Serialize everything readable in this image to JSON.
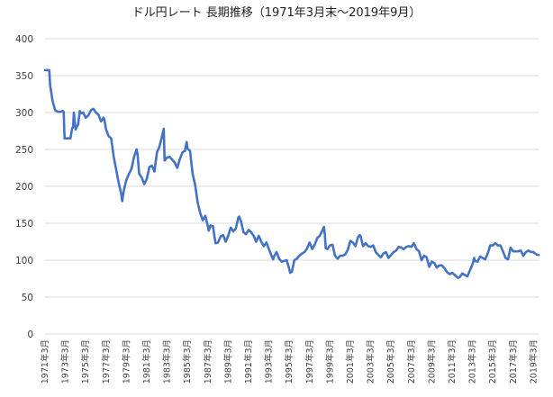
{
  "chart_data": {
    "type": "line",
    "title": "ドル円レート 長期推移（1971年3月末～2019年9月）",
    "xlabel": "",
    "ylabel": "",
    "ylim": [
      0,
      400
    ],
    "yticks": [
      0,
      50,
      100,
      150,
      200,
      250,
      300,
      350,
      400
    ],
    "grid": true,
    "legend": "none",
    "line_color": "#4472c4",
    "xlim": [
      "1971-03",
      "2019-09"
    ],
    "x_tick_labels": [
      "1971年3月",
      "1973年3月",
      "1975年3月",
      "1977年3月",
      "1979年3月",
      "1981年3月",
      "1983年3月",
      "1985年3月",
      "1987年3月",
      "1989年3月",
      "1991年3月",
      "1993年3月",
      "1995年3月",
      "1997年3月",
      "1999年3月",
      "2001年3月",
      "2003年3月",
      "2005年3月",
      "2007年3月",
      "2009年3月",
      "2011年3月",
      "2013年3月",
      "2015年3月",
      "2017年3月",
      "2019年3月"
    ],
    "series": [
      {
        "points": [
          [
            "1971-03",
            357.5
          ],
          [
            "1971-06",
            357.4
          ],
          [
            "1971-08",
            357.2
          ],
          [
            "1971-09",
            337
          ],
          [
            "1971-12",
            315
          ],
          [
            "1972-03",
            303
          ],
          [
            "1972-06",
            301
          ],
          [
            "1972-09",
            301
          ],
          [
            "1972-12",
            302
          ],
          [
            "1973-01",
            301
          ],
          [
            "1973-02",
            265
          ],
          [
            "1973-06",
            265
          ],
          [
            "1973-09",
            265
          ],
          [
            "1973-11",
            279
          ],
          [
            "1973-12",
            280
          ],
          [
            "1974-01",
            300
          ],
          [
            "1974-03",
            277
          ],
          [
            "1974-06",
            284
          ],
          [
            "1974-08",
            302
          ],
          [
            "1974-10",
            299
          ],
          [
            "1974-12",
            300
          ],
          [
            "1975-03",
            293
          ],
          [
            "1975-06",
            296
          ],
          [
            "1975-09",
            303
          ],
          [
            "1975-12",
            305
          ],
          [
            "1976-03",
            300
          ],
          [
            "1976-06",
            297
          ],
          [
            "1976-09",
            288
          ],
          [
            "1976-12",
            293
          ],
          [
            "1977-01",
            290
          ],
          [
            "1977-03",
            277
          ],
          [
            "1977-06",
            268
          ],
          [
            "1977-09",
            265
          ],
          [
            "1977-12",
            240
          ],
          [
            "1978-03",
            222
          ],
          [
            "1978-06",
            204
          ],
          [
            "1978-09",
            189
          ],
          [
            "1978-10",
            180
          ],
          [
            "1978-12",
            195
          ],
          [
            "1979-03",
            209
          ],
          [
            "1979-06",
            217
          ],
          [
            "1979-09",
            224
          ],
          [
            "1979-12",
            240
          ],
          [
            "1980-03",
            250
          ],
          [
            "1980-04",
            245
          ],
          [
            "1980-06",
            217
          ],
          [
            "1980-09",
            212
          ],
          [
            "1980-12",
            203
          ],
          [
            "1981-03",
            210
          ],
          [
            "1981-06",
            226
          ],
          [
            "1981-09",
            228
          ],
          [
            "1981-12",
            220
          ],
          [
            "1982-03",
            246
          ],
          [
            "1982-06",
            254
          ],
          [
            "1982-09",
            268
          ],
          [
            "1982-11",
            278
          ],
          [
            "1982-12",
            235
          ],
          [
            "1983-03",
            239
          ],
          [
            "1983-06",
            240
          ],
          [
            "1983-09",
            236
          ],
          [
            "1983-12",
            232
          ],
          [
            "1984-03",
            225
          ],
          [
            "1984-06",
            237
          ],
          [
            "1984-09",
            246
          ],
          [
            "1984-12",
            248
          ],
          [
            "1985-02",
            260
          ],
          [
            "1985-03",
            251
          ],
          [
            "1985-06",
            248
          ],
          [
            "1985-09",
            217
          ],
          [
            "1985-12",
            202
          ],
          [
            "1986-03",
            178
          ],
          [
            "1986-06",
            164
          ],
          [
            "1986-09",
            154
          ],
          [
            "1986-12",
            160
          ],
          [
            "1987-03",
            146
          ],
          [
            "1987-04",
            140
          ],
          [
            "1987-06",
            147
          ],
          [
            "1987-09",
            146
          ],
          [
            "1987-12",
            123
          ],
          [
            "1988-03",
            124
          ],
          [
            "1988-06",
            132
          ],
          [
            "1988-09",
            134
          ],
          [
            "1988-12",
            125
          ],
          [
            "1989-03",
            133
          ],
          [
            "1989-06",
            144
          ],
          [
            "1989-09",
            139
          ],
          [
            "1989-12",
            143
          ],
          [
            "1990-03",
            158
          ],
          [
            "1990-04",
            159
          ],
          [
            "1990-06",
            153
          ],
          [
            "1990-09",
            138
          ],
          [
            "1990-12",
            135
          ],
          [
            "1991-03",
            141
          ],
          [
            "1991-06",
            138
          ],
          [
            "1991-09",
            133
          ],
          [
            "1991-12",
            125
          ],
          [
            "1992-03",
            133
          ],
          [
            "1992-06",
            125
          ],
          [
            "1992-09",
            119
          ],
          [
            "1992-12",
            124
          ],
          [
            "1993-03",
            115
          ],
          [
            "1993-06",
            106
          ],
          [
            "1993-08",
            101
          ],
          [
            "1993-09",
            105
          ],
          [
            "1993-12",
            111
          ],
          [
            "1994-03",
            102
          ],
          [
            "1994-06",
            98
          ],
          [
            "1994-09",
            99
          ],
          [
            "1994-12",
            100
          ],
          [
            "1995-03",
            88
          ],
          [
            "1995-04",
            83
          ],
          [
            "1995-06",
            84
          ],
          [
            "1995-09",
            100
          ],
          [
            "1995-12",
            102
          ],
          [
            "1996-03",
            106
          ],
          [
            "1996-06",
            109
          ],
          [
            "1996-09",
            111
          ],
          [
            "1996-12",
            116
          ],
          [
            "1997-03",
            124
          ],
          [
            "1997-05",
            118
          ],
          [
            "1997-06",
            115
          ],
          [
            "1997-09",
            121
          ],
          [
            "1997-12",
            130
          ],
          [
            "1998-03",
            133
          ],
          [
            "1998-06",
            140
          ],
          [
            "1998-08",
            145
          ],
          [
            "1998-09",
            134
          ],
          [
            "1998-10",
            116
          ],
          [
            "1998-12",
            115
          ],
          [
            "1999-03",
            120
          ],
          [
            "1999-06",
            121
          ],
          [
            "1999-09",
            106
          ],
          [
            "1999-12",
            102
          ],
          [
            "2000-03",
            106
          ],
          [
            "2000-06",
            106
          ],
          [
            "2000-09",
            108
          ],
          [
            "2000-12",
            114
          ],
          [
            "2001-03",
            126
          ],
          [
            "2001-06",
            124
          ],
          [
            "2001-09",
            119
          ],
          [
            "2001-12",
            131
          ],
          [
            "2002-02",
            134
          ],
          [
            "2002-03",
            133
          ],
          [
            "2002-06",
            119
          ],
          [
            "2002-09",
            123
          ],
          [
            "2002-12",
            119
          ],
          [
            "2003-03",
            118
          ],
          [
            "2003-06",
            120
          ],
          [
            "2003-09",
            111
          ],
          [
            "2003-12",
            107
          ],
          [
            "2004-03",
            104
          ],
          [
            "2004-06",
            109
          ],
          [
            "2004-09",
            111
          ],
          [
            "2004-12",
            103
          ],
          [
            "2005-03",
            107
          ],
          [
            "2005-06",
            111
          ],
          [
            "2005-09",
            113
          ],
          [
            "2005-12",
            118
          ],
          [
            "2006-03",
            117
          ],
          [
            "2006-06",
            115
          ],
          [
            "2006-09",
            118
          ],
          [
            "2006-12",
            119
          ],
          [
            "2007-03",
            118
          ],
          [
            "2007-06",
            123
          ],
          [
            "2007-09",
            115
          ],
          [
            "2007-12",
            112
          ],
          [
            "2008-03",
            100
          ],
          [
            "2008-06",
            106
          ],
          [
            "2008-09",
            104
          ],
          [
            "2008-12",
            91
          ],
          [
            "2009-03",
            98
          ],
          [
            "2009-06",
            96
          ],
          [
            "2009-09",
            90
          ],
          [
            "2009-12",
            93
          ],
          [
            "2010-03",
            93
          ],
          [
            "2010-06",
            89
          ],
          [
            "2010-09",
            84
          ],
          [
            "2010-12",
            81
          ],
          [
            "2011-03",
            83
          ],
          [
            "2011-06",
            80
          ],
          [
            "2011-09",
            77
          ],
          [
            "2011-10",
            76
          ],
          [
            "2011-12",
            77
          ],
          [
            "2012-03",
            82
          ],
          [
            "2012-06",
            80
          ],
          [
            "2012-09",
            78
          ],
          [
            "2012-12",
            86
          ],
          [
            "2013-03",
            94
          ],
          [
            "2013-05",
            103
          ],
          [
            "2013-06",
            99
          ],
          [
            "2013-09",
            98
          ],
          [
            "2013-12",
            105
          ],
          [
            "2014-03",
            103
          ],
          [
            "2014-06",
            101
          ],
          [
            "2014-09",
            109
          ],
          [
            "2014-12",
            120
          ],
          [
            "2015-03",
            120
          ],
          [
            "2015-06",
            123
          ],
          [
            "2015-09",
            120
          ],
          [
            "2015-12",
            120
          ],
          [
            "2016-03",
            112
          ],
          [
            "2016-06",
            103
          ],
          [
            "2016-09",
            101
          ],
          [
            "2016-12",
            117
          ],
          [
            "2017-03",
            112
          ],
          [
            "2017-06",
            112
          ],
          [
            "2017-09",
            112
          ],
          [
            "2017-12",
            113
          ],
          [
            "2018-03",
            106
          ],
          [
            "2018-06",
            111
          ],
          [
            "2018-09",
            113
          ],
          [
            "2018-12",
            111
          ],
          [
            "2019-03",
            111
          ],
          [
            "2019-06",
            108
          ],
          [
            "2019-09",
            107
          ]
        ]
      }
    ]
  }
}
